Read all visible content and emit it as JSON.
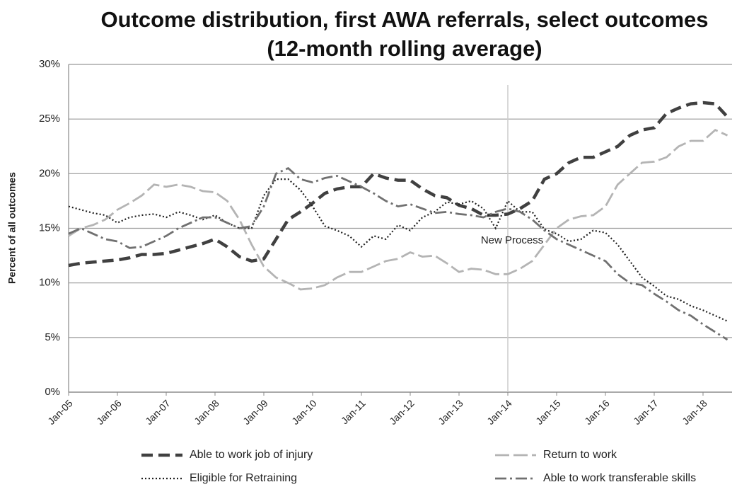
{
  "chart_data": {
    "type": "line",
    "title": "Outcome distribution, first AWA referrals, select outcomes",
    "subtitle": "(12-month rolling average)",
    "y_label": "Percent of all outcomes",
    "categories": [
      "Jan-05",
      null,
      null,
      null,
      "Jan-06",
      null,
      null,
      null,
      "Jan-07",
      null,
      null,
      null,
      "Jan-08",
      null,
      null,
      null,
      "Jan-09",
      null,
      null,
      null,
      "Jan-10",
      null,
      null,
      null,
      "Jan-11",
      null,
      null,
      null,
      "Jan-12",
      null,
      null,
      null,
      "Jan-13",
      null,
      null,
      null,
      "Jan-14",
      null,
      null,
      null,
      "Jan-15",
      null,
      null,
      null,
      "Jan-16",
      null,
      null,
      null,
      "Jan-17",
      null,
      null,
      null,
      "Jan-18",
      null,
      null
    ],
    "series": [
      {
        "name": "Able to work job of injury",
        "color": "#404040",
        "values": [
          11.6,
          11.8,
          11.9,
          12.0,
          12.1,
          12.3,
          12.6,
          12.6,
          12.7,
          13.0,
          13.3,
          13.6,
          14.0,
          13.3,
          12.4,
          12.0,
          12.2,
          14.0,
          15.8,
          16.5,
          17.3,
          18.2,
          18.6,
          18.8,
          18.8,
          20.0,
          19.6,
          19.4,
          19.4,
          18.6,
          18.0,
          17.8,
          17.1,
          16.8,
          16.2,
          16.2,
          16.3,
          16.8,
          17.5,
          19.5,
          20.0,
          21.0,
          21.5,
          21.5,
          22.0,
          22.5,
          23.5,
          24.0,
          24.2,
          25.5,
          26.0,
          26.4,
          26.5,
          26.4,
          25.2
        ]
      },
      {
        "name": "Return to work",
        "color": "#b4b4b4",
        "values": [
          14.3,
          15.0,
          15.3,
          15.8,
          16.7,
          17.3,
          18.0,
          19.0,
          18.8,
          19.0,
          18.8,
          18.4,
          18.3,
          17.5,
          15.8,
          13.5,
          11.5,
          10.5,
          10.0,
          9.4,
          9.5,
          9.8,
          10.5,
          11.0,
          11.0,
          11.5,
          12.0,
          12.2,
          12.8,
          12.4,
          12.5,
          11.8,
          11.0,
          11.3,
          11.2,
          10.8,
          10.8,
          11.3,
          12.0,
          13.5,
          15.0,
          15.8,
          16.1,
          16.2,
          17.0,
          19.0,
          20.0,
          21.0,
          21.1,
          21.5,
          22.5,
          23.0,
          23.0,
          24.0,
          23.5
        ]
      },
      {
        "name": "Eligible for Retraining",
        "color": "#202020",
        "values": [
          17.0,
          16.7,
          16.4,
          16.2,
          15.5,
          16.0,
          16.2,
          16.3,
          16.0,
          16.5,
          16.2,
          15.8,
          16.2,
          15.5,
          15.0,
          15.0,
          18.0,
          19.5,
          19.5,
          18.5,
          17.0,
          15.2,
          14.8,
          14.3,
          13.3,
          14.3,
          14.0,
          15.3,
          14.8,
          16.0,
          16.5,
          17.4,
          17.2,
          17.5,
          16.8,
          15.0,
          17.5,
          16.5,
          16.5,
          14.9,
          14.5,
          13.8,
          14.0,
          14.8,
          14.6,
          13.5,
          12.0,
          10.5,
          9.7,
          8.8,
          8.5,
          7.9,
          7.5,
          7.0,
          6.5
        ]
      },
      {
        "name": "Able to work transferable skills",
        "color": "#707070",
        "values": [
          14.5,
          15.0,
          14.5,
          14.0,
          13.8,
          13.2,
          13.3,
          13.8,
          14.3,
          15.0,
          15.5,
          16.0,
          16.0,
          15.5,
          15.0,
          15.2,
          17.0,
          20.0,
          20.5,
          19.5,
          19.2,
          19.6,
          19.8,
          19.3,
          18.8,
          18.2,
          17.5,
          17.0,
          17.2,
          16.8,
          16.4,
          16.5,
          16.3,
          16.2,
          16.0,
          16.5,
          16.8,
          16.5,
          15.8,
          14.8,
          14.0,
          13.5,
          13.0,
          12.5,
          12.0,
          10.8,
          10.0,
          9.8,
          9.0,
          8.3,
          7.5,
          7.0,
          6.2,
          5.5,
          4.8
        ]
      }
    ],
    "ylim": [
      0,
      30
    ],
    "yticks": [
      {
        "value": 0,
        "label": "0%"
      },
      {
        "value": 5,
        "label": "5%"
      },
      {
        "value": 10,
        "label": "10%"
      },
      {
        "value": 15,
        "label": "15%"
      },
      {
        "value": 20,
        "label": "20%"
      },
      {
        "value": 25,
        "label": "25%"
      },
      {
        "value": 30,
        "label": "30%"
      }
    ],
    "grid": true,
    "annotation": {
      "text": "New Process",
      "at": "Jan-14"
    },
    "legend": "bottom"
  }
}
